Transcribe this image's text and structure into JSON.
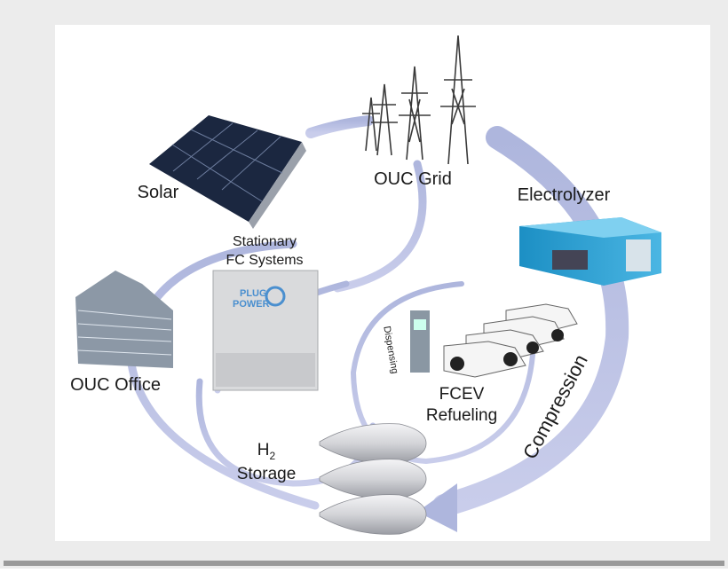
{
  "nodes": [
    {
      "label": [
        "OUC Grid"
      ]
    },
    {
      "label": [
        "Solar"
      ]
    },
    {
      "label": [
        "Electrolyzer"
      ]
    },
    {
      "label": [
        "Stationary",
        "FC Systems"
      ]
    },
    {
      "label": [
        "OUC Office"
      ]
    },
    {
      "label": [
        "FCEV",
        "Refueling"
      ]
    },
    {
      "label": [
        "H",
        "2",
        "Storage"
      ]
    }
  ],
  "edges": [
    {
      "label": "Dispensing"
    },
    {
      "label": "Compression"
    }
  ],
  "logo": [
    "PLUG",
    "POWER"
  ]
}
